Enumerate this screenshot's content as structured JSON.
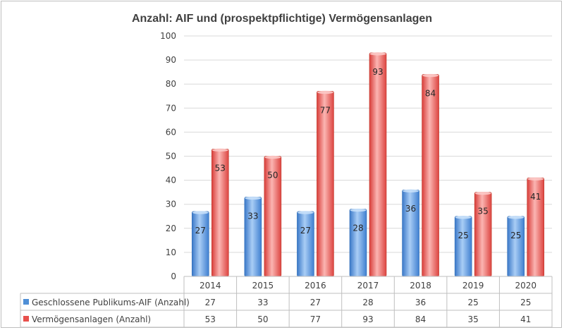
{
  "chart_data": {
    "type": "bar",
    "title": "Anzahl: AIF und (prospektpflichtige) Vermögensanlagen",
    "categories": [
      "2014",
      "2015",
      "2016",
      "2017",
      "2018",
      "2019",
      "2020"
    ],
    "series": [
      {
        "name": "Geschlossene Publikums-AIF (Anzahl)",
        "values": [
          27,
          33,
          27,
          28,
          36,
          25,
          25
        ],
        "color": "#4f8fd6"
      },
      {
        "name": "Vermögensanlagen (Anzahl)",
        "values": [
          53,
          50,
          77,
          93,
          84,
          35,
          41
        ],
        "color": "#e8504c"
      }
    ],
    "ylim": [
      0,
      100
    ],
    "yticks": [
      "0",
      "10",
      "20",
      "30",
      "40",
      "50",
      "60",
      "70",
      "80",
      "90",
      "100"
    ],
    "grid": true,
    "legend": "data-table-below",
    "data_labels": true
  }
}
